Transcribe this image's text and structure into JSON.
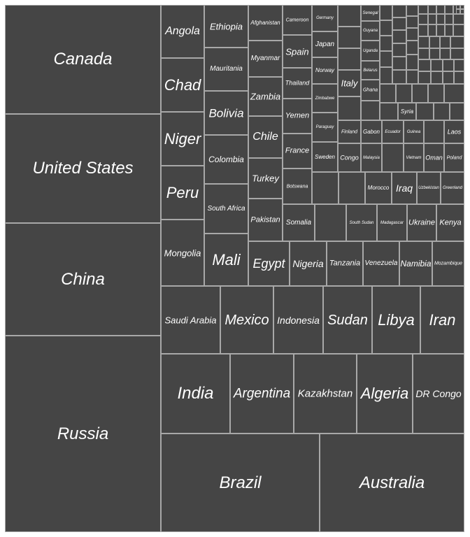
{
  "chart_data": {
    "type": "treemap",
    "title": "",
    "colors": {
      "tile": "#454545",
      "border": "#a8a8a8",
      "text": "#ffffff"
    },
    "labels": [
      "Russia",
      "China",
      "United States",
      "Canada",
      "Brazil",
      "Australia",
      "India",
      "Argentina",
      "Kazakhstan",
      "Algeria",
      "DR Congo",
      "Saudi Arabia",
      "Mexico",
      "Indonesia",
      "Sudan",
      "Libya",
      "Iran",
      "Mongolia",
      "Peru",
      "Niger",
      "Chad",
      "Angola",
      "Mali",
      "South Africa",
      "Colombia",
      "Bolivia",
      "Mauritania",
      "Ethiopia",
      "Egypt",
      "Nigeria",
      "Tanzania",
      "Venezuela",
      "Namibia",
      "Mozambique",
      "Pakistan",
      "Turkey",
      "Chile",
      "Zambia",
      "Myanmar",
      "Afghanistan",
      "Somalia",
      "South Sudan",
      "Madagascar",
      "Ukraine",
      "Kenya",
      "Botswana",
      "France",
      "Yemen",
      "Thailand",
      "Spain",
      "Cameroon",
      "Morocco",
      "Iraq",
      "Uzbekistan",
      "Greenland",
      "Sweden",
      "Paraguay",
      "Zimbabwe",
      "Norway",
      "Japan",
      "Germany",
      "Congo",
      "Malaysia",
      "Vietnam",
      "Oman",
      "Poland",
      "Finland",
      "Gabon",
      "Ecuador",
      "Guinea",
      "Laos",
      "Italy",
      "Ghana",
      "Belarus",
      "Uganda",
      "Guyana",
      "Senegal",
      "Syria"
    ]
  }
}
